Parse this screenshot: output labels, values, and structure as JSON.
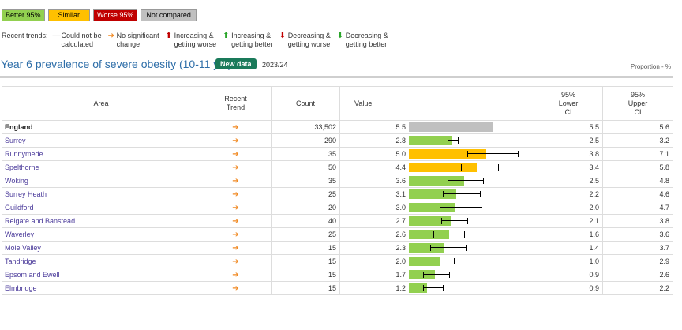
{
  "legend": {
    "better": "Better 95%",
    "similar": "Similar",
    "worse": "Worse 95%",
    "not_compared": "Not compared",
    "recent_trends_label": "Recent trends:",
    "trends": [
      {
        "icon": "dash-icon",
        "glyph": "—",
        "color": "grey",
        "label_1": "Could not be",
        "label_2": "calculated"
      },
      {
        "icon": "arrow-right-icon",
        "glyph": "➔",
        "color": "orange",
        "label_1": "No significant",
        "label_2": "change"
      },
      {
        "icon": "arrow-up-icon",
        "glyph": "⬆",
        "color": "red",
        "label_1": "Increasing &",
        "label_2": "getting worse"
      },
      {
        "icon": "arrow-up-icon",
        "glyph": "⬆",
        "color": "green",
        "label_1": "Increasing &",
        "label_2": "getting better"
      },
      {
        "icon": "arrow-down-icon",
        "glyph": "⬇",
        "color": "red",
        "label_1": "Decreasing &",
        "label_2": "getting worse"
      },
      {
        "icon": "arrow-down-icon",
        "glyph": "⬇",
        "color": "green",
        "label_1": "Decreasing &",
        "label_2": "getting better"
      }
    ]
  },
  "indicator": {
    "title": "Year 6 prevalence of severe obesity (10-11 yrs)",
    "new_data": "New data",
    "period": "2023/24",
    "unit": "Proportion - %"
  },
  "table": {
    "headers": {
      "area": "Area",
      "trend_1": "Recent",
      "trend_2": "Trend",
      "count": "Count",
      "value": "Value",
      "lower_1": "95%",
      "lower_2": "Lower",
      "lower_3": "CI",
      "upper_1": "95%",
      "upper_2": "Upper",
      "upper_3": "CI"
    },
    "scale_max": 8,
    "colors": {
      "similar": "#92d050",
      "worse": "#ffc000",
      "benchmark": "#c0c0c0"
    },
    "rows": [
      {
        "area": "England",
        "trend": "➔",
        "count": "33,502",
        "value": "5.5",
        "v": 5.5,
        "lci": "5.5",
        "uci": "5.6",
        "l": 5.5,
        "u": 5.6,
        "status": "benchmark"
      },
      {
        "area": "Surrey",
        "trend": "➔",
        "count": "290",
        "value": "2.8",
        "v": 2.8,
        "lci": "2.5",
        "uci": "3.2",
        "l": 2.5,
        "u": 3.2,
        "status": "similar"
      },
      {
        "area": "Runnymede",
        "trend": "➔",
        "count": "35",
        "value": "5.0",
        "v": 5.0,
        "lci": "3.8",
        "uci": "7.1",
        "l": 3.8,
        "u": 7.1,
        "status": "worse"
      },
      {
        "area": "Spelthorne",
        "trend": "➔",
        "count": "50",
        "value": "4.4",
        "v": 4.4,
        "lci": "3.4",
        "uci": "5.8",
        "l": 3.4,
        "u": 5.8,
        "status": "worse"
      },
      {
        "area": "Woking",
        "trend": "➔",
        "count": "35",
        "value": "3.6",
        "v": 3.6,
        "lci": "2.5",
        "uci": "4.8",
        "l": 2.5,
        "u": 4.8,
        "status": "similar"
      },
      {
        "area": "Surrey Heath",
        "trend": "➔",
        "count": "25",
        "value": "3.1",
        "v": 3.1,
        "lci": "2.2",
        "uci": "4.6",
        "l": 2.2,
        "u": 4.6,
        "status": "similar"
      },
      {
        "area": "Guildford",
        "trend": "➔",
        "count": "20",
        "value": "3.0",
        "v": 3.0,
        "lci": "2.0",
        "uci": "4.7",
        "l": 2.0,
        "u": 4.7,
        "status": "similar"
      },
      {
        "area": "Reigate and Banstead",
        "trend": "➔",
        "count": "40",
        "value": "2.7",
        "v": 2.7,
        "lci": "2.1",
        "uci": "3.8",
        "l": 2.1,
        "u": 3.8,
        "status": "similar"
      },
      {
        "area": "Waverley",
        "trend": "➔",
        "count": "25",
        "value": "2.6",
        "v": 2.6,
        "lci": "1.6",
        "uci": "3.6",
        "l": 1.6,
        "u": 3.6,
        "status": "similar"
      },
      {
        "area": "Mole Valley",
        "trend": "➔",
        "count": "15",
        "value": "2.3",
        "v": 2.3,
        "lci": "1.4",
        "uci": "3.7",
        "l": 1.4,
        "u": 3.7,
        "status": "similar"
      },
      {
        "area": "Tandridge",
        "trend": "➔",
        "count": "15",
        "value": "2.0",
        "v": 2.0,
        "lci": "1.0",
        "uci": "2.9",
        "l": 1.0,
        "u": 2.9,
        "status": "similar"
      },
      {
        "area": "Epsom and Ewell",
        "trend": "➔",
        "count": "15",
        "value": "1.7",
        "v": 1.7,
        "lci": "0.9",
        "uci": "2.6",
        "l": 0.9,
        "u": 2.6,
        "status": "similar"
      },
      {
        "area": "Elmbridge",
        "trend": "➔",
        "count": "15",
        "value": "1.2",
        "v": 1.2,
        "lci": "0.9",
        "uci": "2.2",
        "l": 0.9,
        "u": 2.2,
        "status": "similar"
      }
    ]
  }
}
